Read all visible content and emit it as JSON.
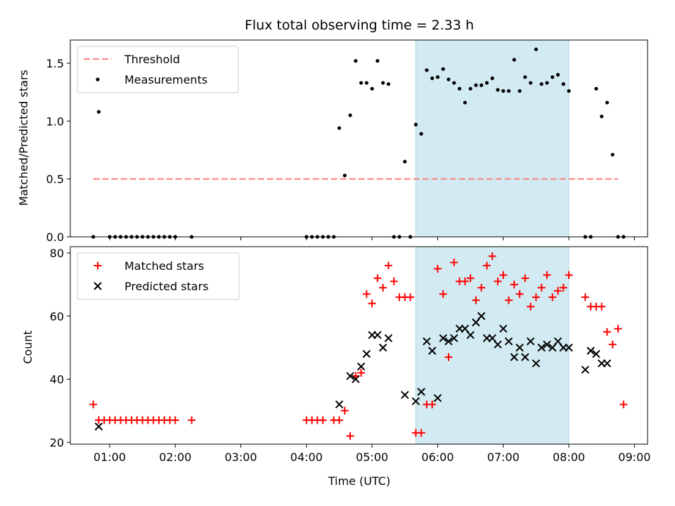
{
  "chart_data": [
    {
      "type": "scatter",
      "title": "Flux total observing time = 2.33 h",
      "ylabel": "Matched/Predicted stars",
      "xlabel": "",
      "xlim": [
        "00:24",
        "09:12"
      ],
      "ylim": [
        0,
        1.7
      ],
      "yticks": [
        0.0,
        0.5,
        1.0,
        1.5
      ],
      "ytick_labels": [
        "0.0",
        "0.5",
        "1.0",
        "1.5"
      ],
      "grid": false,
      "legend_position": "top-left",
      "shaded_interval": [
        "05:40",
        "08:00"
      ],
      "shade_color": "#add8e6",
      "series": [
        {
          "name": "Threshold",
          "style": "dashed-line",
          "color": "#ff7f7f",
          "x": [
            "00:45",
            "08:45"
          ],
          "y": [
            0.5,
            0.5
          ]
        },
        {
          "name": "Measurements",
          "style": "dots",
          "color": "#000000",
          "x": [
            "00:45",
            "00:50",
            "01:00",
            "01:05",
            "01:10",
            "01:15",
            "01:20",
            "01:25",
            "01:30",
            "01:35",
            "01:40",
            "01:45",
            "01:50",
            "01:55",
            "02:00",
            "02:15",
            "04:00",
            "04:05",
            "04:10",
            "04:15",
            "04:20",
            "04:25",
            "04:30",
            "04:35",
            "04:40",
            "04:45",
            "04:50",
            "04:55",
            "05:00",
            "05:05",
            "05:10",
            "05:15",
            "05:20",
            "05:25",
            "05:30",
            "05:35",
            "05:40",
            "05:45",
            "05:50",
            "05:55",
            "06:00",
            "06:05",
            "06:10",
            "06:15",
            "06:20",
            "06:25",
            "06:30",
            "06:35",
            "06:40",
            "06:45",
            "06:50",
            "06:55",
            "07:00",
            "07:05",
            "07:10",
            "07:15",
            "07:20",
            "07:25",
            "07:30",
            "07:35",
            "07:40",
            "07:45",
            "07:50",
            "07:55",
            "08:00",
            "08:15",
            "08:20",
            "08:25",
            "08:30",
            "08:35",
            "08:40",
            "08:45",
            "08:50"
          ],
          "y": [
            0.0,
            1.08,
            0.0,
            0.0,
            0.0,
            0.0,
            0.0,
            0.0,
            0.0,
            0.0,
            0.0,
            0.0,
            0.0,
            0.0,
            0.0,
            0.0,
            0.0,
            0.0,
            0.0,
            0.0,
            0.0,
            0.0,
            0.94,
            0.53,
            1.05,
            1.52,
            1.33,
            1.33,
            1.28,
            1.52,
            1.33,
            1.32,
            0.0,
            0.0,
            0.65,
            0.0,
            0.97,
            0.89,
            1.44,
            1.37,
            1.38,
            1.45,
            1.36,
            1.33,
            1.28,
            1.16,
            1.28,
            1.31,
            1.31,
            1.33,
            1.37,
            1.27,
            1.26,
            1.26,
            1.53,
            1.26,
            1.38,
            1.33,
            1.62,
            1.32,
            1.33,
            1.38,
            1.4,
            1.32,
            1.26,
            0.0,
            0.0,
            1.28,
            1.04,
            1.16,
            0.71,
            0.0,
            0.0
          ]
        }
      ]
    },
    {
      "type": "scatter",
      "title": "",
      "xlabel": "Time (UTC)",
      "ylabel": "Count",
      "xlim": [
        "00:24",
        "09:12"
      ],
      "ylim": [
        19.4,
        82
      ],
      "yticks": [
        20,
        40,
        60,
        80
      ],
      "ytick_labels": [
        "20",
        "40",
        "60",
        "80"
      ],
      "xticks": [
        "01:00",
        "02:00",
        "03:00",
        "04:00",
        "05:00",
        "06:00",
        "07:00",
        "08:00",
        "09:00"
      ],
      "grid": false,
      "legend_position": "top-left",
      "shaded_interval": [
        "05:40",
        "08:00"
      ],
      "shade_color": "#add8e6",
      "series": [
        {
          "name": "Matched stars",
          "marker": "plus",
          "color": "#ff0000",
          "x": [
            "00:45",
            "00:50",
            "00:55",
            "01:00",
            "01:05",
            "01:10",
            "01:15",
            "01:20",
            "01:25",
            "01:30",
            "01:35",
            "01:40",
            "01:45",
            "01:50",
            "01:55",
            "02:00",
            "02:15",
            "04:00",
            "04:05",
            "04:10",
            "04:15",
            "04:25",
            "04:30",
            "04:35",
            "04:40",
            "04:45",
            "04:50",
            "04:55",
            "05:00",
            "05:05",
            "05:10",
            "05:15",
            "05:20",
            "05:25",
            "05:30",
            "05:35",
            "05:40",
            "05:45",
            "05:50",
            "05:55",
            "06:00",
            "06:05",
            "06:10",
            "06:15",
            "06:20",
            "06:25",
            "06:30",
            "06:35",
            "06:40",
            "06:45",
            "06:50",
            "06:55",
            "07:00",
            "07:05",
            "07:10",
            "07:15",
            "07:20",
            "07:25",
            "07:30",
            "07:35",
            "07:40",
            "07:45",
            "07:50",
            "07:55",
            "08:00",
            "08:15",
            "08:20",
            "08:25",
            "08:30",
            "08:35",
            "08:40",
            "08:45",
            "08:50"
          ],
          "y": [
            32,
            27,
            27,
            27,
            27,
            27,
            27,
            27,
            27,
            27,
            27,
            27,
            27,
            27,
            27,
            27,
            27,
            27,
            27,
            27,
            27,
            27,
            27,
            30,
            22,
            41,
            42,
            67,
            64,
            72,
            69,
            76,
            71,
            66,
            66,
            66,
            23,
            23,
            32,
            32,
            75,
            67,
            47,
            77,
            71,
            71,
            72,
            65,
            69,
            76,
            79,
            71,
            73,
            65,
            70,
            67,
            72,
            63,
            66,
            69,
            73,
            66,
            68,
            69,
            73,
            66,
            63,
            63,
            63,
            55,
            51,
            56,
            32
          ]
        },
        {
          "name": "Predicted stars",
          "marker": "x",
          "color": "#000000",
          "x": [
            "00:50",
            "04:30",
            "04:40",
            "04:45",
            "04:50",
            "04:55",
            "05:00",
            "05:05",
            "05:10",
            "05:15",
            "05:30",
            "05:40",
            "05:45",
            "05:50",
            "05:55",
            "06:00",
            "06:05",
            "06:10",
            "06:15",
            "06:20",
            "06:25",
            "06:30",
            "06:35",
            "06:40",
            "06:45",
            "06:50",
            "06:55",
            "07:00",
            "07:05",
            "07:10",
            "07:15",
            "07:20",
            "07:25",
            "07:30",
            "07:35",
            "07:40",
            "07:45",
            "07:50",
            "07:55",
            "08:00",
            "08:15",
            "08:20",
            "08:25",
            "08:30",
            "08:35"
          ],
          "y": [
            25,
            32,
            41,
            40,
            44,
            48,
            54,
            54,
            50,
            53,
            35,
            33,
            36,
            52,
            49,
            34,
            53,
            52,
            53,
            56,
            56,
            54,
            58,
            60,
            53,
            53,
            51,
            56,
            52,
            47,
            50,
            47,
            52,
            45,
            50,
            51,
            50,
            52,
            50,
            50,
            43,
            49,
            48,
            45,
            45
          ]
        }
      ]
    }
  ]
}
